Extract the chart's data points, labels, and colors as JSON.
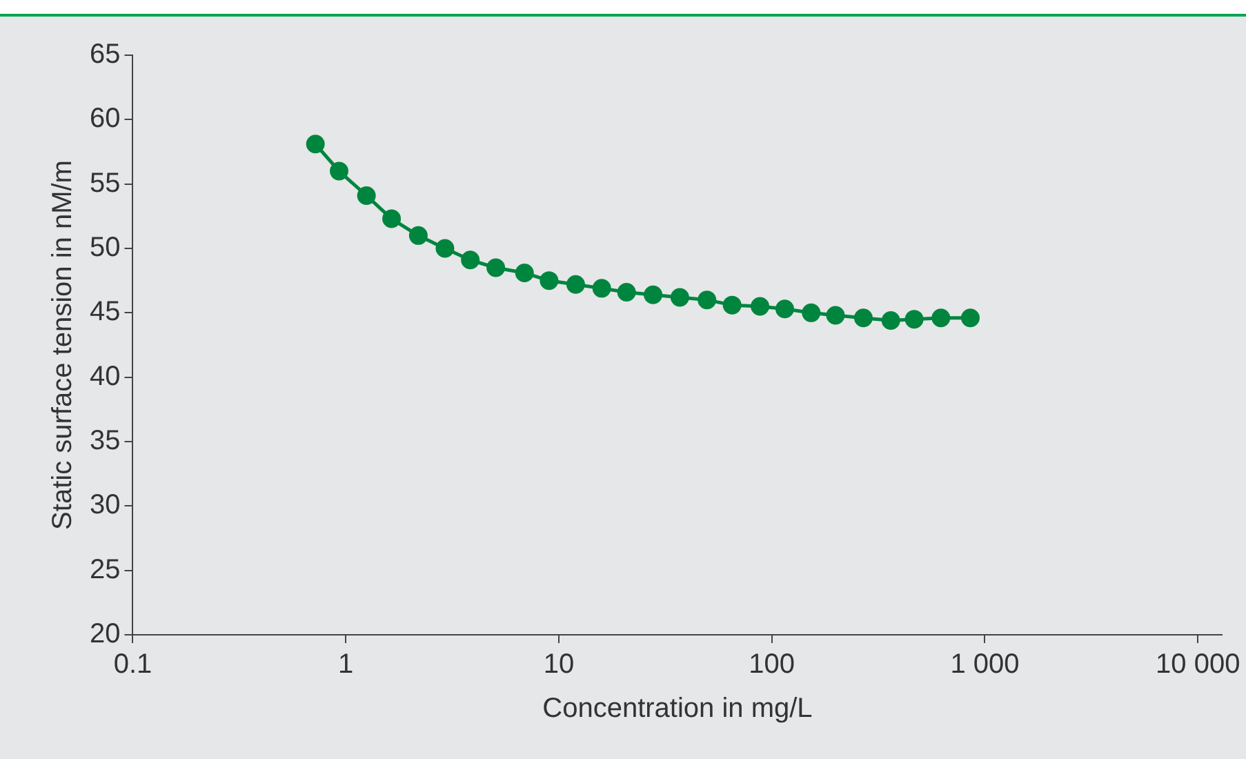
{
  "chart_data": {
    "type": "line",
    "xlabel": "Concentration in mg/L",
    "ylabel": "Static surface tension in nM/m",
    "log": "x",
    "x": [
      0.72,
      0.93,
      1.25,
      1.64,
      2.19,
      2.92,
      3.84,
      5.06,
      6.9,
      9.0,
      12.0,
      15.9,
      20.8,
      27.7,
      37,
      49.6,
      65.1,
      88,
      115,
      153,
      199,
      269,
      362,
      466,
      622,
      855
    ],
    "series": [
      {
        "color": "#00853f",
        "values": [
          58.1,
          56.0,
          54.1,
          52.3,
          51.0,
          50.0,
          49.1,
          48.5,
          48.1,
          47.5,
          47.2,
          46.9,
          46.6,
          46.4,
          46.2,
          46.0,
          45.6,
          45.5,
          45.3,
          45.0,
          44.8,
          44.6,
          44.4,
          44.5,
          44.6,
          44.6
        ]
      }
    ],
    "xlim": [
      0.1,
      13000
    ],
    "xticks": [
      {
        "value": 0.1,
        "label": "0.1"
      },
      1,
      10,
      100,
      {
        "value": 1000,
        "label": "1 000"
      },
      {
        "value": 10000,
        "label": "10 000"
      }
    ],
    "ylim": [
      20,
      65
    ],
    "yticks": [
      20,
      25,
      30,
      35,
      40,
      45,
      50,
      55,
      60,
      65
    ],
    "grid": false,
    "legend": false,
    "marker": "circle",
    "line_style": "solid"
  }
}
